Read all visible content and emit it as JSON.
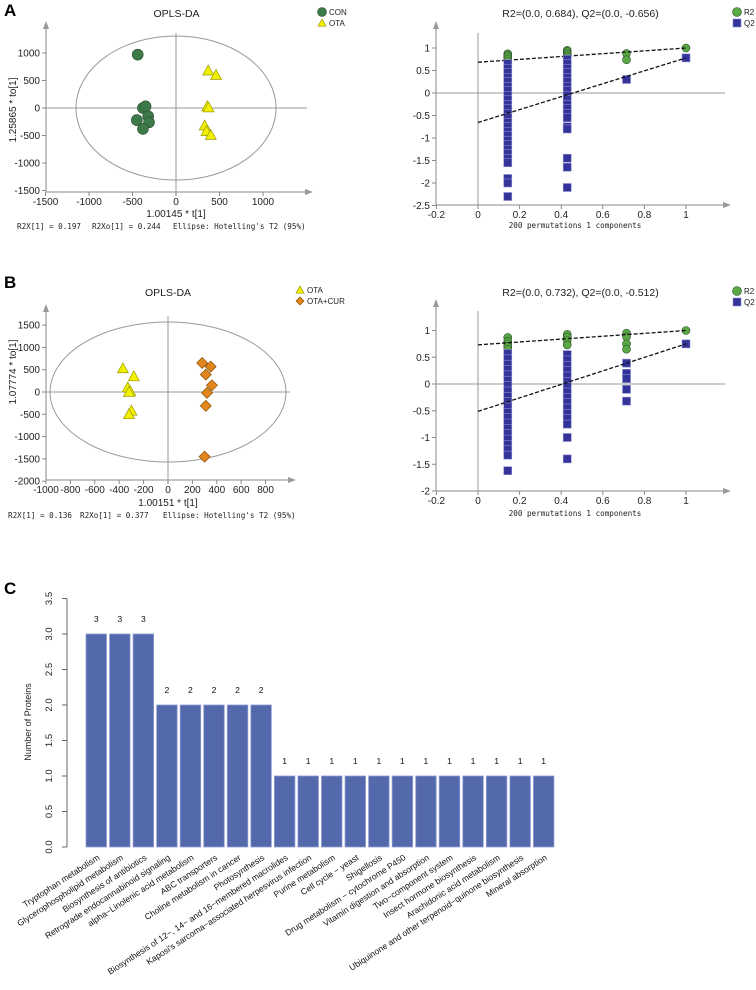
{
  "panels": {
    "a": "A",
    "b": "B",
    "c": "C"
  },
  "chart_data": [
    {
      "type": "scatter",
      "title": "OPLS-DA",
      "xlabel": "1.00145 * t[1]",
      "ylabel": "1.25865 * to[1]",
      "xlim": [
        -1500,
        1500
      ],
      "ylim": [
        -1500,
        1300
      ],
      "xticks": [
        -1500,
        -1000,
        -500,
        0,
        500,
        1000
      ],
      "yticks": [
        -1500,
        -1000,
        -500,
        0,
        500,
        1000
      ],
      "footer": [
        "R2X[1] = 0.197",
        "R2Xo[1] = 0.244",
        "Ellipse: Hotelling's T2 (95%)"
      ],
      "ellipse": {
        "rx": 1150,
        "ry": 1310
      },
      "legend_position": "top-right",
      "series": [
        {
          "name": "CON",
          "marker": "circle",
          "color": "#3d7a4a",
          "points": [
            [
              -440,
              970
            ],
            [
              -380,
              0
            ],
            [
              -350,
              30
            ],
            [
              -450,
              -220
            ],
            [
              -320,
              -150
            ],
            [
              -310,
              -260
            ],
            [
              -380,
              -380
            ]
          ]
        },
        {
          "name": "OTA",
          "marker": "triangle",
          "color": "#f2f000",
          "points": [
            [
              370,
              680
            ],
            [
              460,
              600
            ],
            [
              360,
              30
            ],
            [
              375,
              10
            ],
            [
              330,
              -320
            ],
            [
              350,
              -420
            ],
            [
              400,
              -490
            ]
          ]
        }
      ]
    },
    {
      "type": "scatter",
      "title": "R2=(0.0, 0.684), Q2=(0.0, -0.656)",
      "xlabel": "200 permutations 1 components",
      "xlim": [
        -0.2,
        1.15
      ],
      "ylim": [
        -2.5,
        1.3
      ],
      "xticks": [
        -0.2,
        0,
        0.2,
        0.4,
        0.6,
        0.8,
        1
      ],
      "yticks": [
        -2.5,
        -2,
        -1.5,
        -1,
        -0.5,
        0,
        0.5,
        1
      ],
      "legend_position": "top-right",
      "series": [
        {
          "name": "R2",
          "marker": "circle",
          "color": "#5aa844",
          "intercept": 0.684,
          "groups": [
            {
              "x": 0.143,
              "y": [
                0.87,
                0.84,
                0.8,
                0.75,
                0.7,
                0.65,
                0.6
              ]
            },
            {
              "x": 0.429,
              "y": [
                0.95,
                0.92,
                0.88,
                0.84,
                0.8,
                0.75,
                0.7
              ]
            },
            {
              "x": 0.714,
              "y": [
                0.88,
                0.74
              ]
            },
            {
              "x": 1,
              "y": [
                1.0
              ]
            }
          ]
        },
        {
          "name": "Q2",
          "marker": "square",
          "color": "#33339a",
          "intercept": -0.656,
          "groups": [
            {
              "x": 0.143,
              "y": [
                0.65,
                0.55,
                0.45,
                0.35,
                0.25,
                0.15,
                0.05,
                -0.05,
                -0.15,
                -0.25,
                -0.35,
                -0.45,
                -0.55,
                -0.65,
                -0.75,
                -0.85,
                -0.95,
                -1.05,
                -1.15,
                -1.25,
                -1.35,
                -1.45,
                -1.55,
                -1.9,
                -2.0,
                -2.3
              ]
            },
            {
              "x": 0.429,
              "y": [
                0.75,
                0.65,
                0.55,
                0.45,
                0.35,
                0.25,
                0.15,
                0.05,
                -0.05,
                -0.15,
                -0.25,
                -0.35,
                -0.45,
                -0.55,
                -0.75,
                -0.8,
                -1.45,
                -1.65,
                -2.1
              ]
            },
            {
              "x": 0.714,
              "y": [
                0.3
              ]
            },
            {
              "x": 1,
              "y": [
                0.78
              ]
            }
          ]
        }
      ]
    },
    {
      "type": "scatter",
      "title": "OPLS-DA",
      "xlabel": "1.00151 * t[1]",
      "ylabel": "1.07774 * to[1]",
      "xlim": [
        -1000,
        1000
      ],
      "ylim": [
        -2000,
        1800
      ],
      "xticks": [
        -1000,
        -800,
        -600,
        -400,
        -200,
        0,
        200,
        400,
        600,
        800
      ],
      "yticks": [
        -2000,
        -1500,
        -1000,
        -500,
        0,
        500,
        1000,
        1500
      ],
      "footer": [
        "R2X[1] = 0.136",
        "R2Xo[1] = 0.377",
        "Ellipse: Hotelling's T2 (95%)"
      ],
      "ellipse": {
        "rx": 967,
        "ry": 1570
      },
      "legend_position": "top-right",
      "series": [
        {
          "name": "OTA",
          "marker": "triangle",
          "color": "#f2f000",
          "points": [
            [
              -370,
              530
            ],
            [
              -280,
              350
            ],
            [
              -330,
              100
            ],
            [
              -310,
              20
            ],
            [
              -320,
              0
            ],
            [
              -300,
              -420
            ],
            [
              -320,
              -500
            ]
          ]
        },
        {
          "name": "OTA+CUR",
          "marker": "diamond",
          "color": "#e0861c",
          "points": [
            [
              280,
              650
            ],
            [
              350,
              570
            ],
            [
              310,
              390
            ],
            [
              360,
              150
            ],
            [
              320,
              -20
            ],
            [
              310,
              -310
            ],
            [
              300,
              -1450
            ]
          ]
        }
      ]
    },
    {
      "type": "scatter",
      "title": "R2=(0.0, 0.732), Q2=(0.0, -0.512)",
      "xlabel": "200 permutations 1 components",
      "xlim": [
        -0.2,
        1.15
      ],
      "ylim": [
        -2,
        1.4
      ],
      "xticks": [
        -0.2,
        0,
        0.2,
        0.4,
        0.6,
        0.8,
        1
      ],
      "yticks": [
        -2,
        -1.5,
        -1,
        -0.5,
        0,
        0.5,
        1
      ],
      "legend_position": "top-right",
      "series": [
        {
          "name": "R2",
          "marker": "circle",
          "color": "#5aa844",
          "intercept": 0.732,
          "groups": [
            {
              "x": 0.143,
              "y": [
                0.87,
                0.8,
                0.75,
                0.7,
                0.65
              ]
            },
            {
              "x": 0.429,
              "y": [
                0.93,
                0.88,
                0.82,
                0.73
              ]
            },
            {
              "x": 0.714,
              "y": [
                0.95,
                0.88,
                0.75,
                0.65
              ]
            },
            {
              "x": 1,
              "y": [
                1.0
              ]
            }
          ]
        },
        {
          "name": "Q2",
          "marker": "square",
          "color": "#33339a",
          "intercept": -0.512,
          "groups": [
            {
              "x": 0.143,
              "y": [
                0.57,
                0.47,
                0.37,
                0.27,
                0.17,
                0.07,
                -0.03,
                -0.13,
                -0.23,
                -0.33,
                -0.43,
                -0.53,
                -0.63,
                -0.73,
                -0.83,
                -0.93,
                -1.03,
                -1.13,
                -1.23,
                -1.33,
                -1.62
              ]
            },
            {
              "x": 0.429,
              "y": [
                0.55,
                0.45,
                0.35,
                0.25,
                0.15,
                0.05,
                -0.05,
                -0.15,
                -0.25,
                -0.35,
                -0.45,
                -0.55,
                -0.65,
                -0.75,
                -1.0,
                -1.4
              ]
            },
            {
              "x": 0.714,
              "y": [
                0.39,
                0.2,
                0.1,
                -0.1,
                -0.32
              ]
            },
            {
              "x": 1,
              "y": [
                0.75
              ]
            }
          ]
        }
      ]
    },
    {
      "type": "bar",
      "ylabel": "Number of Proteins",
      "ylim": [
        0,
        3.5
      ],
      "yticks": [
        "0.0",
        "0.5",
        "1.0",
        "1.5",
        "2.0",
        "2.5",
        "3.0",
        "3.5"
      ],
      "color": "#5469ab",
      "categories": [
        "Tryptophan metabolism",
        "Glycerophospholipid metabolism",
        "Biosynthesis of antibiotics",
        "Retrograde endocannabinoid signaling",
        "alpha−Linolenic acid metabolism",
        "ABC transporters",
        "Choline metabolism in cancer",
        "Photosynthesis",
        "Biosynthesis of 12−, 14− and 16−membered macrolides",
        "Kaposi's sarcoma−associated herpesvirus infection",
        "Purine metabolism",
        "Cell cycle − yeast",
        "Shigellosis",
        "Drug metabolism − cytochrome P450",
        "Vitamin digestion and absorption",
        "Two−component system",
        "Insect hormone biosynthesis",
        "Arachidonic acid metabolism",
        "Ubiquinone and other terpenoid−quinone biosynthesis",
        "Mineral absorption"
      ],
      "values": [
        3,
        3,
        3,
        2,
        2,
        2,
        2,
        2,
        1,
        1,
        1,
        1,
        1,
        1,
        1,
        1,
        1,
        1,
        1,
        1
      ]
    }
  ]
}
